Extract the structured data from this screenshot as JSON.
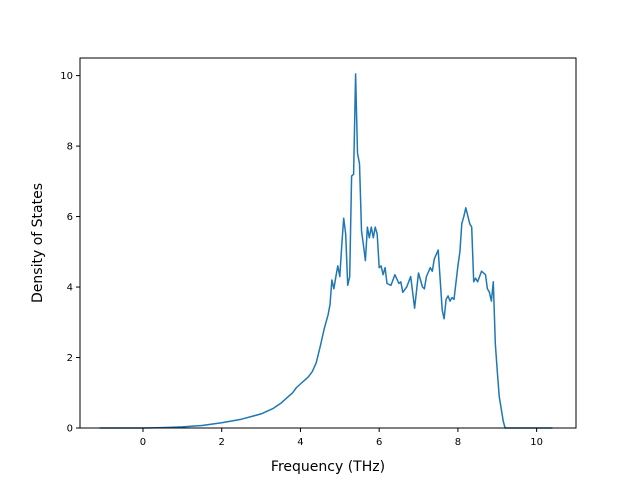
{
  "chart_data": {
    "type": "line",
    "title": "",
    "xlabel": "Frequency (THz)",
    "ylabel": "Density of States",
    "xlim": [
      -1.6,
      11.0
    ],
    "ylim": [
      0,
      10.5
    ],
    "xticks": [
      0,
      2,
      4,
      6,
      8,
      10
    ],
    "yticks": [
      0,
      2,
      4,
      6,
      8,
      10
    ],
    "grid": false,
    "line_color": "#1f77b4",
    "series": [
      {
        "x": [
          -1.1,
          -0.5,
          0.0,
          0.5,
          1.0,
          1.5,
          2.0,
          2.5,
          3.0,
          3.3,
          3.5,
          3.6,
          3.7,
          3.8,
          3.9,
          4.0,
          4.1,
          4.2,
          4.3,
          4.4,
          4.5,
          4.6,
          4.65,
          4.7,
          4.75,
          4.8,
          4.85,
          4.9,
          4.95,
          5.0,
          5.05,
          5.1,
          5.15,
          5.2,
          5.25,
          5.3,
          5.35,
          5.4,
          5.45,
          5.5,
          5.55,
          5.6,
          5.65,
          5.7,
          5.75,
          5.8,
          5.85,
          5.9,
          5.95,
          6.0,
          6.05,
          6.1,
          6.15,
          6.2,
          6.3,
          6.4,
          6.5,
          6.55,
          6.6,
          6.7,
          6.8,
          6.9,
          7.0,
          7.1,
          7.15,
          7.2,
          7.3,
          7.35,
          7.4,
          7.5,
          7.6,
          7.65,
          7.7,
          7.75,
          7.8,
          7.85,
          7.9,
          8.0,
          8.05,
          8.1,
          8.15,
          8.2,
          8.3,
          8.35,
          8.4,
          8.45,
          8.5,
          8.55,
          8.6,
          8.7,
          8.75,
          8.8,
          8.85,
          8.9,
          8.95,
          9.0,
          9.05,
          9.1,
          9.15,
          9.2,
          9.3,
          9.4,
          9.5,
          9.6,
          10.0,
          10.4
        ],
        "y": [
          0.0,
          0.0,
          0.0,
          0.01,
          0.03,
          0.07,
          0.15,
          0.25,
          0.4,
          0.55,
          0.7,
          0.8,
          0.9,
          1.0,
          1.15,
          1.25,
          1.35,
          1.45,
          1.6,
          1.85,
          2.3,
          2.8,
          3.0,
          3.2,
          3.5,
          4.2,
          3.95,
          4.3,
          4.6,
          4.3,
          5.2,
          5.95,
          5.5,
          4.05,
          4.3,
          7.15,
          7.2,
          10.05,
          7.8,
          7.5,
          5.6,
          5.2,
          4.75,
          5.7,
          5.4,
          5.7,
          5.4,
          5.7,
          5.5,
          4.55,
          4.6,
          4.35,
          4.55,
          4.1,
          4.05,
          4.35,
          4.1,
          4.15,
          3.85,
          4.0,
          4.3,
          3.4,
          4.4,
          4.0,
          3.95,
          4.3,
          4.55,
          4.45,
          4.8,
          5.05,
          3.35,
          3.1,
          3.65,
          3.75,
          3.6,
          3.7,
          3.65,
          4.6,
          5.0,
          5.8,
          6.0,
          6.25,
          5.8,
          5.7,
          4.15,
          4.25,
          4.15,
          4.3,
          4.45,
          4.35,
          3.95,
          3.85,
          3.6,
          4.15,
          2.4,
          1.6,
          0.9,
          0.55,
          0.2,
          0.0,
          0.0,
          0.0,
          0.0,
          0.0,
          0.0,
          0.0
        ]
      }
    ]
  }
}
